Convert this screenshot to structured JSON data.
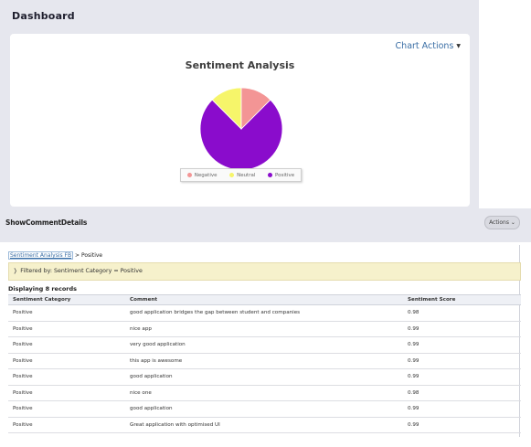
{
  "dashboard": {
    "title": "Dashboard",
    "chart_actions_label": "Chart Actions",
    "caret_icon": "▼"
  },
  "chart_data": {
    "type": "pie",
    "title": "Sentiment Analysis",
    "slices": [
      {
        "label": "Positive",
        "value": 75,
        "color": "#8a0ccc"
      },
      {
        "label": "Neutral",
        "value": 12.5,
        "color": "#f6f56a"
      },
      {
        "label": "Negative",
        "value": 12.5,
        "color": "#f39595"
      }
    ],
    "legend": [
      {
        "label": "Negative",
        "color": "#f39595"
      },
      {
        "label": "Neutral",
        "color": "#f6f56a"
      },
      {
        "label": "Positive",
        "color": "#8a0ccc"
      }
    ],
    "legend_position": "bottom"
  },
  "details": {
    "title": "ShowCommentDetails",
    "actions_label": "Actions",
    "breadcrumb_link": "Sentiment Analysis FB",
    "breadcrumb_rest": "> Positive",
    "filter_text": "Filtered by: Sentiment Category = Positive",
    "record_count": "Displaying 8 records",
    "columns": [
      "Sentiment Category",
      "Comment",
      "Sentiment Score"
    ],
    "rows": [
      [
        "Positive",
        "good application bridges the gap between student and companies",
        "0.98"
      ],
      [
        "Positive",
        "nice app",
        "0.99"
      ],
      [
        "Positive",
        "very good application",
        "0.99"
      ],
      [
        "Positive",
        "this app is awesome",
        "0.99"
      ],
      [
        "Positive",
        "good application",
        "0.99"
      ],
      [
        "Positive",
        "nice one",
        "0.98"
      ],
      [
        "Positive",
        "good application",
        "0.99"
      ],
      [
        "Positive",
        "Great application with optimised UI",
        "0.99"
      ]
    ]
  }
}
